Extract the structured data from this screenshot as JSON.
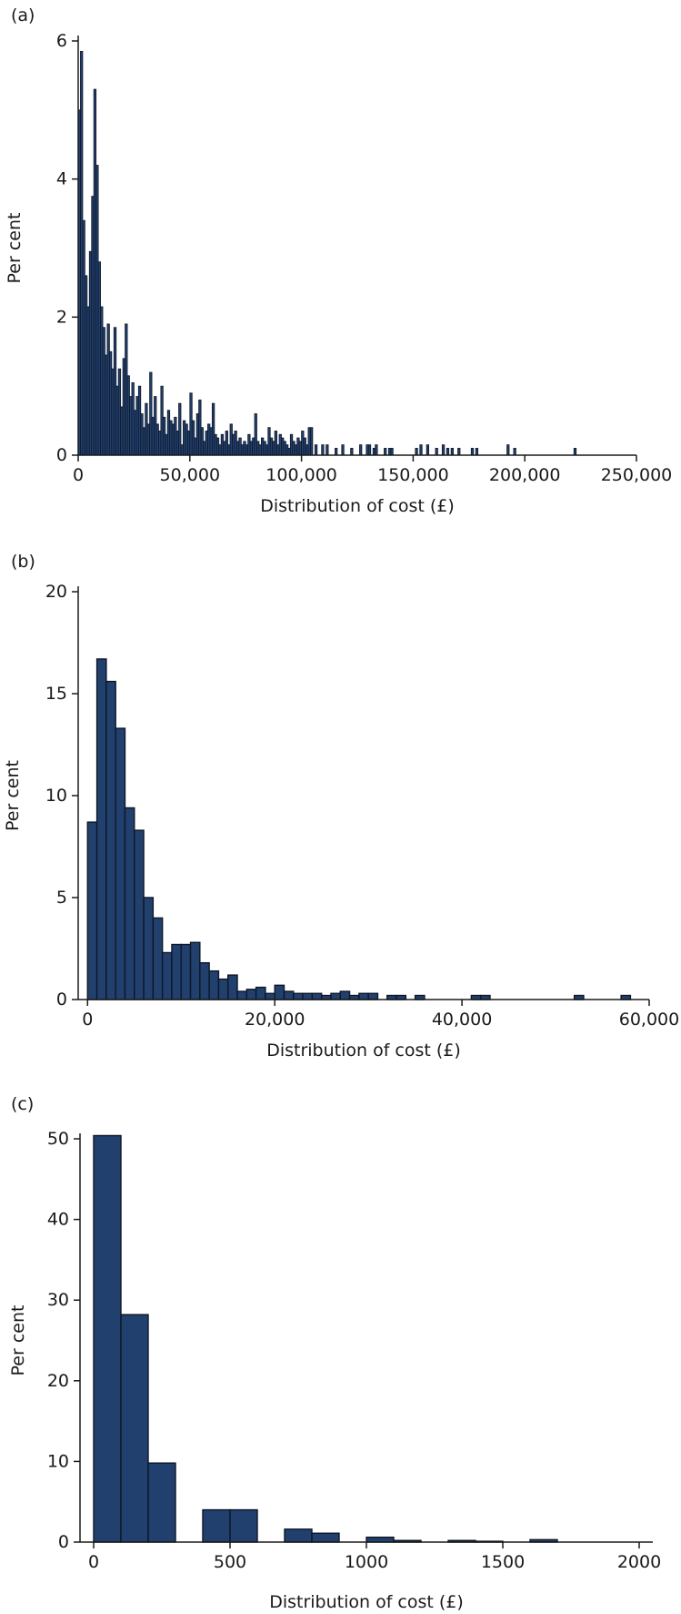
{
  "colors": {
    "bar_fill": "#22406e",
    "bar_stroke": "#0e1726",
    "axis": "#1a1a1a"
  },
  "chart_data": [
    {
      "panel_label": "(a)",
      "type": "bar",
      "xlabel": "Distribution of cost (£)",
      "ylabel": "Per cent",
      "xlim": [
        0,
        250000
      ],
      "ylim": [
        0,
        6
      ],
      "xticks": [
        0,
        50000,
        100000,
        150000,
        200000,
        250000
      ],
      "xtick_labels": [
        "0",
        "50,000",
        "100,000",
        "150,000",
        "200,000",
        "250,000"
      ],
      "yticks": [
        0,
        2,
        4,
        6
      ],
      "ytick_labels": [
        "0",
        "2",
        "4",
        "6"
      ],
      "bin_width": 1000,
      "bin_start": 0,
      "values": [
        5.0,
        5.85,
        3.4,
        2.6,
        2.15,
        2.95,
        3.75,
        5.3,
        4.2,
        2.8,
        2.15,
        1.85,
        1.45,
        1.9,
        1.5,
        1.25,
        1.85,
        1.0,
        1.25,
        0.7,
        1.4,
        1.9,
        1.15,
        0.85,
        1.05,
        0.65,
        0.85,
        1.0,
        0.6,
        0.4,
        0.75,
        0.45,
        1.2,
        0.55,
        0.85,
        0.45,
        0.35,
        1.0,
        0.55,
        0.3,
        0.65,
        0.5,
        0.45,
        0.55,
        0.35,
        0.75,
        0.15,
        0.5,
        0.45,
        0.35,
        0.9,
        0.5,
        0.25,
        0.6,
        0.8,
        0.4,
        0.2,
        0.35,
        0.45,
        0.4,
        0.75,
        0.3,
        0.25,
        0.15,
        0.3,
        0.2,
        0.35,
        0.15,
        0.45,
        0.3,
        0.35,
        0.2,
        0.25,
        0.15,
        0.2,
        0.15,
        0.3,
        0.2,
        0.25,
        0.6,
        0.2,
        0.15,
        0.25,
        0.2,
        0.15,
        0.4,
        0.25,
        0.2,
        0.35,
        0.15,
        0.3,
        0.25,
        0.2,
        0.15,
        0.1,
        0.3,
        0.2,
        0.15,
        0.25,
        0.2,
        0.35,
        0.25,
        0.15,
        0.4,
        0.4,
        0.0,
        0.15,
        0.0,
        0.0,
        0.15,
        0.0,
        0.15,
        0.0,
        0.0,
        0.0,
        0.1,
        0.0,
        0.0,
        0.15,
        0.0,
        0.0,
        0.0,
        0.1,
        0.0,
        0.0,
        0.0,
        0.15,
        0.0,
        0.0,
        0.15,
        0.15,
        0.0,
        0.1,
        0.15,
        0.0,
        0.0,
        0.0,
        0.1,
        0.0,
        0.1,
        0.1,
        0.0,
        0.0,
        0.0,
        0.0,
        0.0,
        0.0,
        0.0,
        0.0,
        0.0,
        0.0,
        0.1,
        0.0,
        0.15,
        0.0,
        0.0,
        0.15,
        0.0,
        0.0,
        0.0,
        0.1,
        0.0,
        0.0,
        0.15,
        0.0,
        0.1,
        0.0,
        0.1,
        0.0,
        0.0,
        0.1,
        0.0,
        0.0,
        0.0,
        0.0,
        0.0,
        0.1,
        0.0,
        0.1,
        0.0,
        0.0,
        0.0,
        0.0,
        0.0,
        0.0,
        0.0,
        0.0,
        0.0,
        0.0,
        0.0,
        0.0,
        0.0,
        0.15,
        0.0,
        0.0,
        0.1,
        0.0,
        0.0,
        0.0,
        0.0,
        0.0,
        0.0,
        0.0,
        0.0,
        0.0,
        0.0,
        0.0,
        0.0,
        0.0,
        0.0,
        0.0,
        0.0,
        0.0,
        0.0,
        0.0,
        0.0,
        0.0,
        0.0,
        0.0,
        0.0,
        0.0,
        0.0,
        0.1
      ],
      "grid": false
    },
    {
      "panel_label": "(b)",
      "type": "bar",
      "xlabel": "Distribution of cost (£)",
      "ylabel": "Per cent",
      "xlim": [
        -1000,
        60000
      ],
      "ylim": [
        0,
        20
      ],
      "xticks": [
        0,
        20000,
        40000,
        60000
      ],
      "xtick_labels": [
        "0",
        "20,000",
        "40,000",
        "60,000"
      ],
      "yticks": [
        0,
        5,
        10,
        15,
        20
      ],
      "ytick_labels": [
        "0",
        "5",
        "10",
        "15",
        "20"
      ],
      "bin_width": 1000,
      "bin_start": 0,
      "values": [
        8.7,
        16.7,
        15.6,
        13.3,
        9.4,
        8.3,
        5.0,
        4.0,
        2.3,
        2.7,
        2.7,
        2.8,
        1.8,
        1.4,
        1.0,
        1.2,
        0.4,
        0.5,
        0.6,
        0.3,
        0.7,
        0.4,
        0.3,
        0.3,
        0.3,
        0.2,
        0.3,
        0.4,
        0.2,
        0.3,
        0.3,
        0.0,
        0.2,
        0.2,
        0.0,
        0.2,
        0.0,
        0.0,
        0.0,
        0.0,
        0.0,
        0.2,
        0.2,
        0.0,
        0.0,
        0.0,
        0.0,
        0.0,
        0.0,
        0.0,
        0.0,
        0.0,
        0.2,
        0.0,
        0.0,
        0.0,
        0.0,
        0.2
      ],
      "grid": false
    },
    {
      "panel_label": "(c)",
      "type": "bar",
      "xlabel": "Distribution of cost (£)",
      "ylabel": "Per cent",
      "xlim": [
        -50,
        2050
      ],
      "ylim": [
        0,
        50
      ],
      "xticks": [
        0,
        500,
        1000,
        1500,
        2000
      ],
      "xtick_labels": [
        "0",
        "500",
        "1000",
        "1500",
        "2000"
      ],
      "yticks": [
        0,
        10,
        20,
        30,
        40,
        50
      ],
      "ytick_labels": [
        "0",
        "10",
        "20",
        "30",
        "40",
        "50"
      ],
      "bin_width": 100,
      "bin_start": 0,
      "values": [
        50.4,
        28.2,
        9.8,
        0.0,
        4.0,
        4.0,
        0.0,
        1.6,
        1.1,
        0.0,
        0.6,
        0.2,
        0.0,
        0.2,
        0.1,
        0.0,
        0.3,
        0.0,
        0.0,
        0.0
      ],
      "grid": false
    }
  ]
}
